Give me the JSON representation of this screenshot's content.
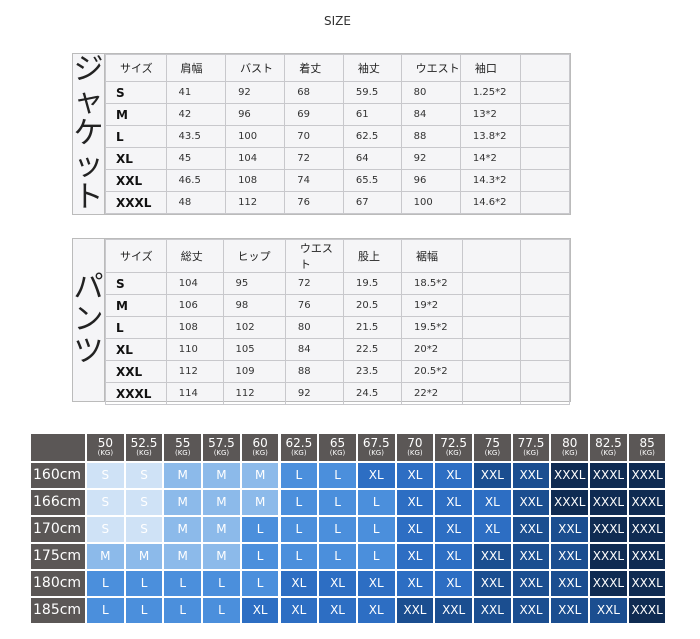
{
  "title": "SIZE",
  "jacket": {
    "label": [
      "ジ",
      "ャ",
      "ケ",
      "ッ",
      "ト"
    ],
    "headers": [
      "サイズ",
      "肩幅",
      "バスト",
      "着丈",
      "袖丈",
      "ウエスト",
      "袖口",
      ""
    ],
    "rows": [
      [
        "S",
        "41",
        "92",
        "68",
        "59.5",
        "80",
        "1.25*2",
        ""
      ],
      [
        "M",
        "42",
        "96",
        "69",
        "61",
        "84",
        "13*2",
        ""
      ],
      [
        "L",
        "43.5",
        "100",
        "70",
        "62.5",
        "88",
        "13.8*2",
        ""
      ],
      [
        "XL",
        "45",
        "104",
        "72",
        "64",
        "92",
        "14*2",
        ""
      ],
      [
        "XXL",
        "46.5",
        "108",
        "74",
        "65.5",
        "96",
        "14.3*2",
        ""
      ],
      [
        "XXXL",
        "48",
        "112",
        "76",
        "67",
        "100",
        "14.6*2",
        ""
      ]
    ]
  },
  "pants": {
    "label": [
      "パ",
      "ン",
      "ツ"
    ],
    "headers": [
      "サイズ",
      "総丈",
      "ヒップ",
      "ウエスト",
      "股上",
      "裾幅",
      "",
      ""
    ],
    "rows": [
      [
        "S",
        "104",
        "95",
        "72",
        "19.5",
        "18.5*2",
        "",
        ""
      ],
      [
        "M",
        "106",
        "98",
        "76",
        "20.5",
        "19*2",
        "",
        ""
      ],
      [
        "L",
        "108",
        "102",
        "80",
        "21.5",
        "19.5*2",
        "",
        ""
      ],
      [
        "XL",
        "110",
        "105",
        "84",
        "22.5",
        "20*2",
        "",
        ""
      ],
      [
        "XXL",
        "112",
        "109",
        "88",
        "23.5",
        "20.5*2",
        "",
        ""
      ],
      [
        "XXXL",
        "114",
        "112",
        "92",
        "24.5",
        "22*2",
        "",
        ""
      ]
    ]
  },
  "size_chart": {
    "weights": [
      "50",
      "52.5",
      "55",
      "57.5",
      "60",
      "62.5",
      "65",
      "67.5",
      "70",
      "72.5",
      "75",
      "77.5",
      "80",
      "82.5",
      "85"
    ],
    "unit": "(KG)",
    "heights": [
      "160cm",
      "166cm",
      "170cm",
      "175cm",
      "180cm",
      "185cm"
    ],
    "cells": [
      [
        "S",
        "S",
        "M",
        "M",
        "M",
        "L",
        "L",
        "XL",
        "XL",
        "XL",
        "XXL",
        "XXL",
        "XXXL",
        "XXXL",
        "XXXL"
      ],
      [
        "S",
        "S",
        "M",
        "M",
        "M",
        "L",
        "L",
        "L",
        "XL",
        "XL",
        "XL",
        "XXL",
        "XXXL",
        "XXXL",
        "XXXL"
      ],
      [
        "S",
        "S",
        "M",
        "M",
        "L",
        "L",
        "L",
        "L",
        "XL",
        "XL",
        "XL",
        "XXL",
        "XXL",
        "XXXL",
        "XXXL"
      ],
      [
        "M",
        "M",
        "M",
        "M",
        "L",
        "L",
        "L",
        "L",
        "XL",
        "XL",
        "XXL",
        "XXL",
        "XXL",
        "XXXL",
        "XXXL"
      ],
      [
        "L",
        "L",
        "L",
        "L",
        "L",
        "XL",
        "XL",
        "XL",
        "XL",
        "XL",
        "XXL",
        "XXL",
        "XXL",
        "XXXL",
        "XXXL"
      ],
      [
        "L",
        "L",
        "L",
        "L",
        "XL",
        "XL",
        "XL",
        "XL",
        "XXL",
        "XXL",
        "XXL",
        "XXL",
        "XXL",
        "XXL",
        "XXXL"
      ]
    ],
    "colors": {
      "S": "#cfe2f6",
      "M": "#8cbaea",
      "L": "#4b8fdc",
      "XL": "#2d6ec3",
      "XXL": "#1b4e90",
      "XXXL": "#0f2b52",
      "header": "#5b5756"
    }
  }
}
